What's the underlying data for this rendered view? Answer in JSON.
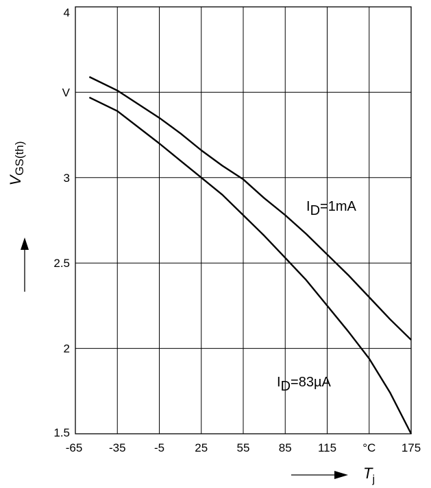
{
  "chart_data": {
    "type": "line",
    "xlabel": "T",
    "xlabel_sub": "j",
    "ylabel": "V",
    "ylabel_sub": "GS(th)",
    "y_unit": "V",
    "x_unit": "°C",
    "xlim": [
      -65,
      175
    ],
    "ylim": [
      1.5,
      4
    ],
    "x_ticks": [
      "-65",
      "-35",
      "-5",
      "25",
      "55",
      "85",
      "115",
      "°C",
      "175"
    ],
    "x_tick_values": [
      -65,
      -35,
      -5,
      25,
      55,
      85,
      115,
      145,
      175
    ],
    "y_ticks": [
      "1.5",
      "2",
      "2.5",
      "3",
      "V",
      "4"
    ],
    "y_tick_values": [
      1.5,
      2,
      2.5,
      3,
      3.5,
      4
    ],
    "grid": true,
    "series": [
      {
        "name": "I_D=1mA",
        "label_main": "I",
        "label_sub": "D",
        "label_tail": "=1mA",
        "color": "#000000",
        "x": [
          -55,
          -35,
          -5,
          10,
          25,
          40,
          55,
          70,
          85,
          100,
          115,
          130,
          145,
          160,
          175
        ],
        "y": [
          3.59,
          3.51,
          3.35,
          3.26,
          3.16,
          3.07,
          2.99,
          2.88,
          2.78,
          2.67,
          2.55,
          2.43,
          2.3,
          2.17,
          2.05
        ]
      },
      {
        "name": "I_D=83µA",
        "label_main": "I",
        "label_sub": "D",
        "label_tail": "=83µA",
        "color": "#000000",
        "x": [
          -55,
          -35,
          -5,
          10,
          25,
          40,
          55,
          70,
          85,
          100,
          115,
          130,
          145,
          160,
          175
        ],
        "y": [
          3.47,
          3.39,
          3.2,
          3.1,
          3.0,
          2.9,
          2.78,
          2.66,
          2.53,
          2.4,
          2.25,
          2.1,
          1.94,
          1.74,
          1.5
        ]
      }
    ]
  }
}
